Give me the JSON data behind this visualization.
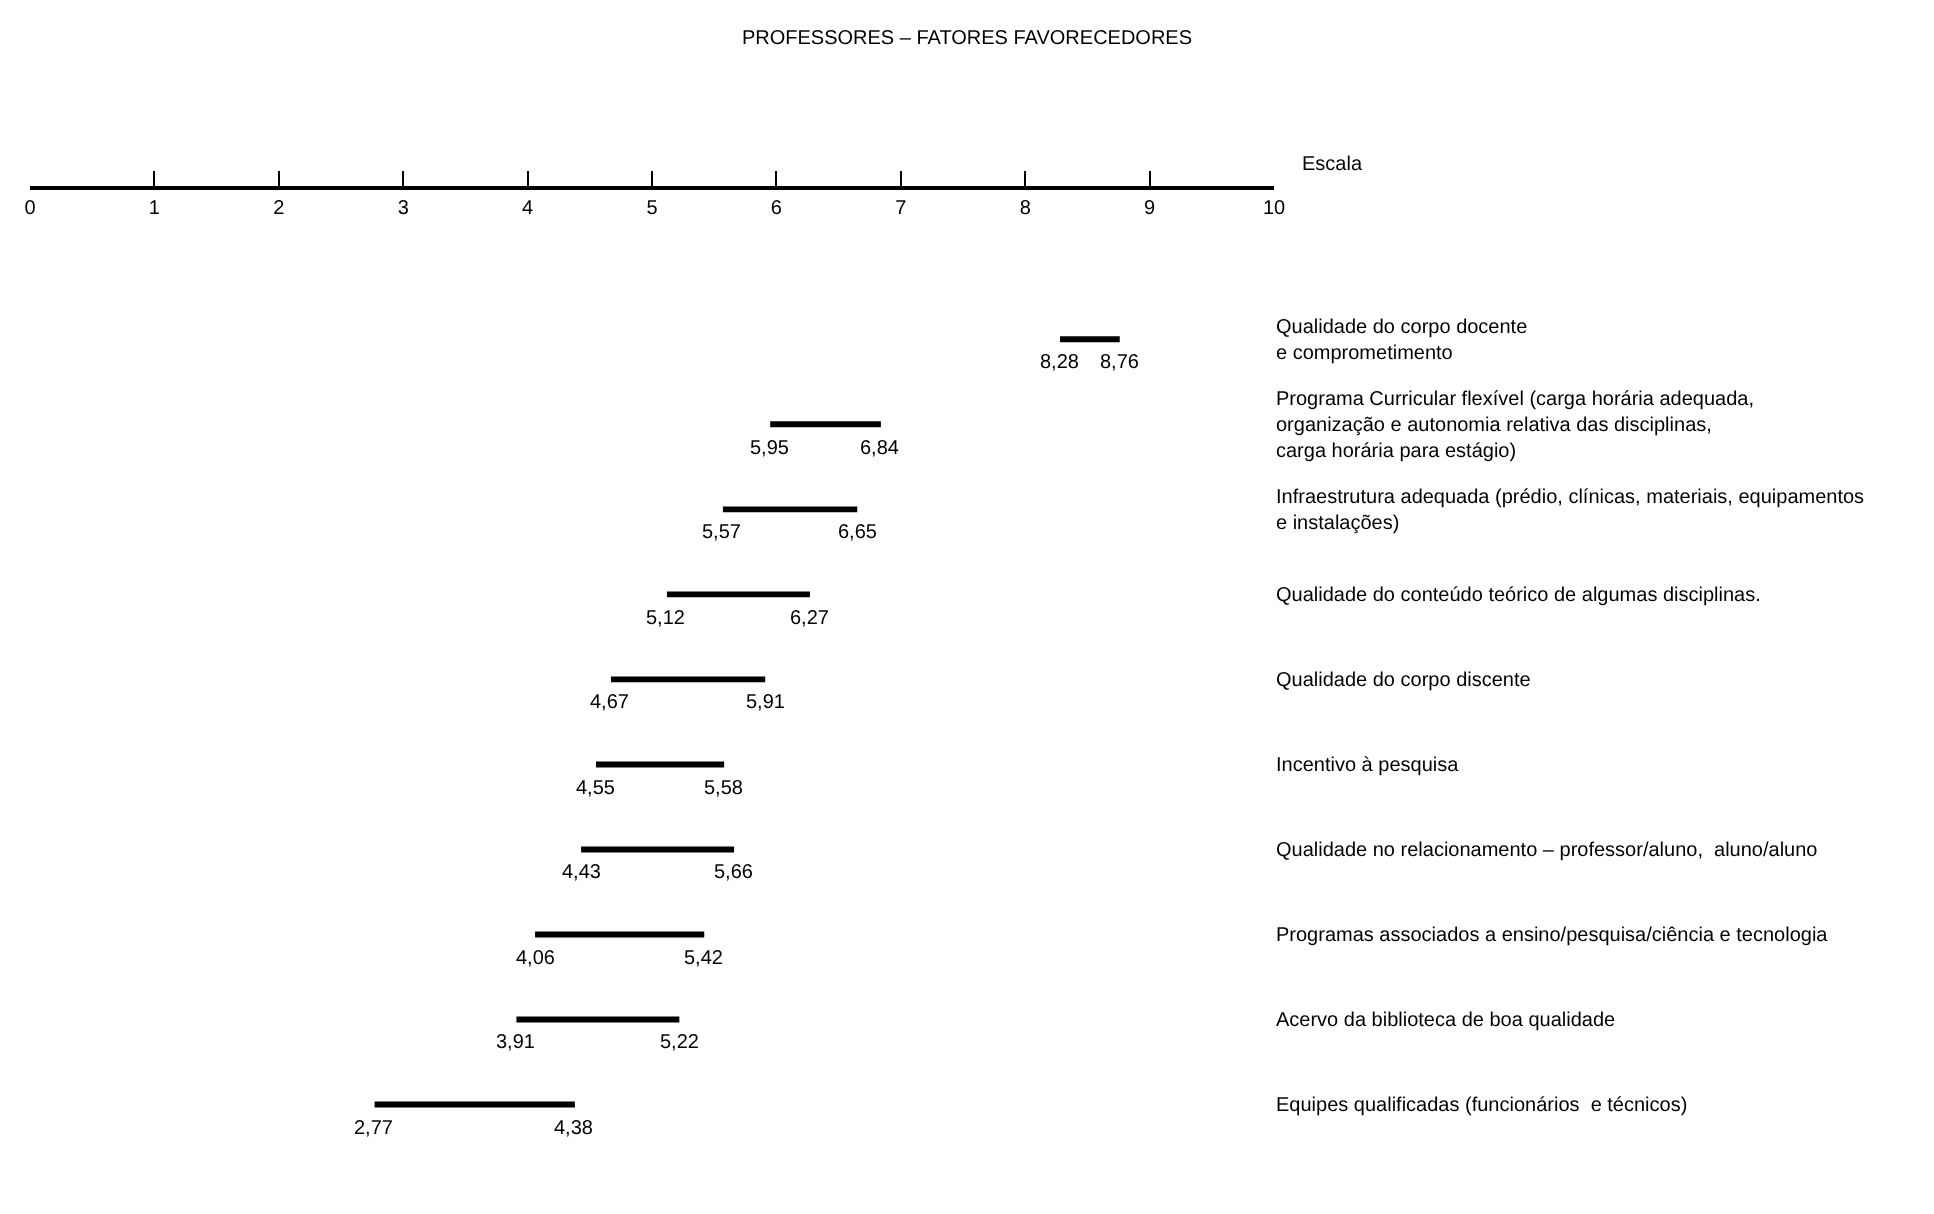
{
  "chart_data": {
    "type": "bar",
    "orientation": "horizontal",
    "title": "PROFESSORES – FATORES FAVORECEDORES",
    "xlabel": "Escala",
    "categories": [
      "Qualidade do corpo docente\ne comprometimento",
      "Programa Curricular flexível (carga horária adequada,\norganização e autonomia relativa das disciplinas,\ncarga horária para estágio)",
      "Infraestrutura adequada (prédio, clínicas, materiais, equipamentos\ne instalações)",
      "Qualidade do conteúdo teórico de algumas disciplinas.",
      "Qualidade do corpo discente",
      "Incentivo à pesquisa",
      "Qualidade no relacionamento – professor/aluno,  aluno/aluno",
      "Programas associados a ensino/pesquisa/ciência e tecnologia",
      "Acervo da biblioteca de boa qualidade",
      "Equipes qualificadas (funcionários  e técnicos)"
    ],
    "base": [
      8.28,
      5.95,
      5.57,
      5.12,
      4.67,
      4.55,
      4.43,
      4.06,
      3.91,
      2.77
    ],
    "values": [
      0.48,
      0.89,
      1.08,
      1.15,
      1.24,
      1.03,
      1.23,
      1.36,
      1.31,
      1.61
    ],
    "annotations": [
      {
        "text": "8,28",
        "x": 8.28,
        "y": "Qualidade do corpo docente\ne comprometimento"
      },
      {
        "text": "8,76",
        "x": 8.76,
        "y": "Qualidade do corpo docente\ne comprometimento"
      },
      {
        "text": "5,95",
        "x": 5.95,
        "y": "Programa Curricular flexível (carga horária adequada,\norganização e autonomia relativa das disciplinas,\ncarga horária para estágio)"
      },
      {
        "text": "6,84",
        "x": 6.84,
        "y": "Programa Curricular flexível (carga horária adequada,\norganização e autonomia relativa das disciplinas,\ncarga horária para estágio)"
      },
      {
        "text": "5,57",
        "x": 5.57,
        "y": "Infraestrutura adequada (prédio, clínicas, materiais, equipamentos\ne instalações)"
      },
      {
        "text": "6,65",
        "x": 6.65,
        "y": "Infraestrutura adequada (prédio, clínicas, materiais, equipamentos\ne instalações)"
      },
      {
        "text": "5,12",
        "x": 5.12,
        "y": "Qualidade do conteúdo teórico de algumas disciplinas."
      },
      {
        "text": "6,27",
        "x": 6.27,
        "y": "Qualidade do conteúdo teórico de algumas disciplinas."
      },
      {
        "text": "4,67",
        "x": 4.67,
        "y": "Qualidade do corpo discente"
      },
      {
        "text": "5,91",
        "x": 5.91,
        "y": "Qualidade do corpo discente"
      },
      {
        "text": "4,55",
        "x": 4.55,
        "y": "Incentivo à pesquisa"
      },
      {
        "text": "5,58",
        "x": 5.58,
        "y": "Incentivo à pesquisa"
      },
      {
        "text": "4,43",
        "x": 4.43,
        "y": "Qualidade no relacionamento – professor/aluno,  aluno/aluno"
      },
      {
        "text": "5,66",
        "x": 5.66,
        "y": "Qualidade no relacionamento – professor/aluno,  aluno/aluno"
      },
      {
        "text": "4,06",
        "x": 4.06,
        "y": "Programas associados a ensino/pesquisa/ciência e tecnologia"
      },
      {
        "text": "5,42",
        "x": 5.42,
        "y": "Programas associados a ensino/pesquisa/ciência e tecnologia"
      },
      {
        "text": "3,91",
        "x": 3.91,
        "y": "Acervo da biblioteca de boa qualidade"
      },
      {
        "text": "5,22",
        "x": 5.22,
        "y": "Acervo da biblioteca de boa qualidade"
      },
      {
        "text": "2,77",
        "x": 2.77,
        "y": "Equipes qualificadas (funcionários  e técnicos)"
      },
      {
        "text": "4,38",
        "x": 4.38,
        "y": "Equipes qualificadas (funcionários  e técnicos)"
      }
    ],
    "color": "#000000",
    "xlim": [
      0,
      10
    ],
    "xticks": [
      0,
      1,
      2,
      3,
      4,
      5,
      6,
      7,
      8,
      9,
      10
    ]
  }
}
